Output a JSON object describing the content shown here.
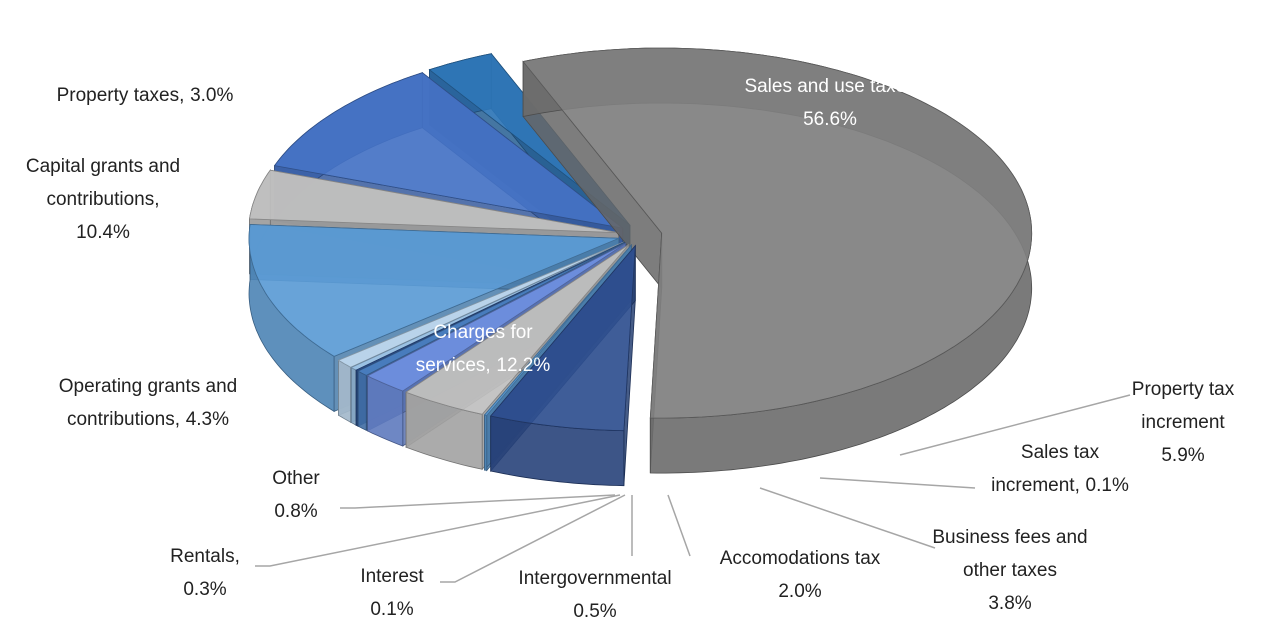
{
  "chart_data": {
    "type": "pie3d",
    "categories": [
      "Sales and use taxes",
      "Property tax increment",
      "Sales tax increment,",
      "Business fees and other taxes",
      "Accomodations tax",
      "Intergovernmental",
      "Interest",
      "Rentals,",
      "Other",
      "Charges for services,",
      "Operating grants and contributions,",
      "Capital grants and contributions,",
      "Property taxes,"
    ],
    "values": [
      56.6,
      5.9,
      0.1,
      3.8,
      2.0,
      0.5,
      0.1,
      0.3,
      0.8,
      12.2,
      4.3,
      10.4,
      3.0
    ],
    "value_labels": [
      "56.6%",
      "5.9%",
      "0.1%",
      "3.8%",
      "2.0%",
      "0.5%",
      "0.1%",
      "0.3%",
      "0.8%",
      "12.2%",
      "4.3%",
      "10.4%",
      "3.0%"
    ],
    "colors": [
      "#7f7f7f",
      "#2f4f8f",
      "#5b9bd5",
      "#bfbfbf",
      "#6f8fdf",
      "#4a7fc0",
      "#2f5597",
      "#9dc3e6",
      "#bdd7ee",
      "#5b9bd5",
      "#c0c0c0",
      "#4472c4",
      "#2e75b6"
    ]
  }
}
